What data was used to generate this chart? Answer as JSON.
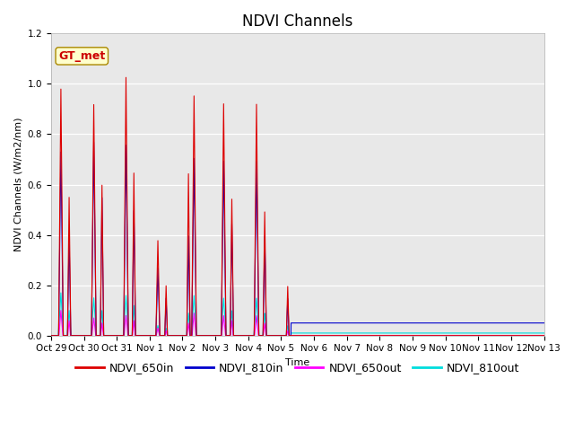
{
  "title": "NDVI Channels",
  "ylabel": "NDVI Channels (W/m2/nm)",
  "xlabel": "Time",
  "ylim": [
    0,
    1.2
  ],
  "bg_color": "#e8e8e8",
  "colors": {
    "NDVI_650in": "#dd0000",
    "NDVI_810in": "#0000cc",
    "NDVI_650out": "#ff00ff",
    "NDVI_810out": "#00dddd"
  },
  "annotation_text": "GT_met",
  "annotation_color": "#cc0000",
  "annotation_bg": "#ffffcc",
  "x_tick_labels": [
    "Oct 29",
    "Oct 30",
    "Oct 31",
    "Nov 1",
    "Nov 2",
    "Nov 3",
    "Nov 4",
    "Nov 5",
    "Nov 6",
    "Nov 7",
    "Nov 8",
    "Nov 9",
    "Nov 10",
    "Nov 11",
    "Nov 12",
    "Nov 13"
  ],
  "flat_810in": 0.05,
  "flat_810out": 0.01,
  "title_fontsize": 12,
  "label_fontsize": 8,
  "legend_fontsize": 9,
  "tick_fontsize": 7.5
}
